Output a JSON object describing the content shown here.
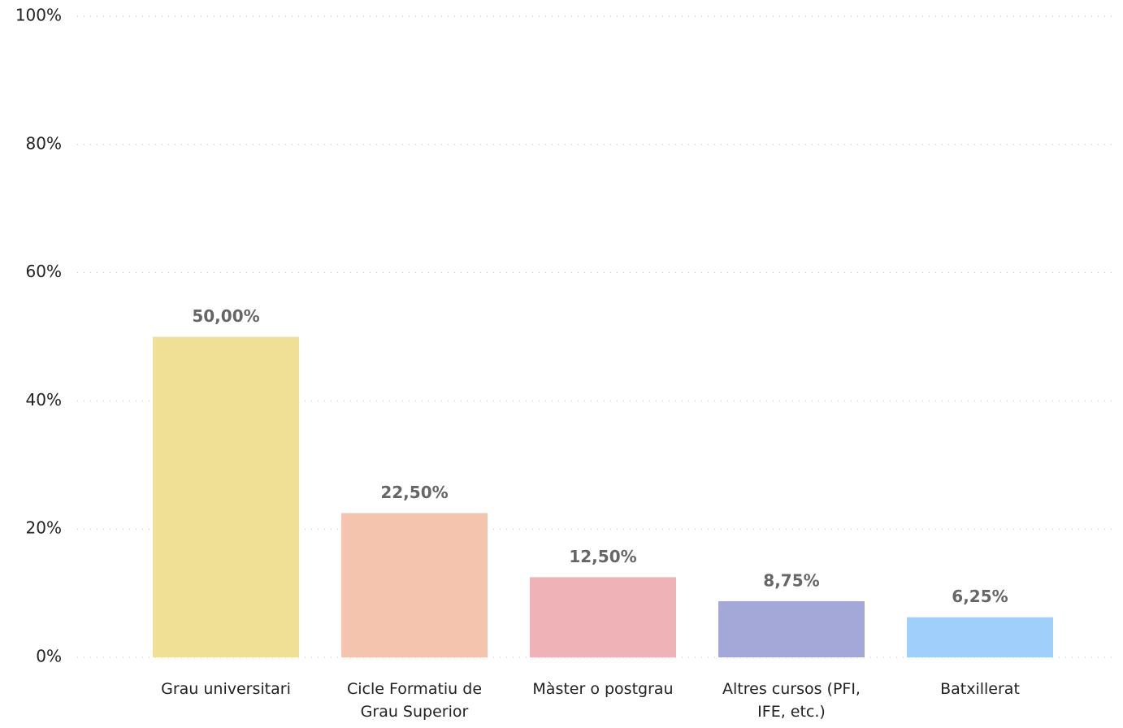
{
  "chart_data": {
    "type": "bar",
    "categories": [
      "Grau universitari",
      "Cicle Formatiu de Grau Superior",
      "Màster o postgrau",
      "Altres cursos (PFI, IFE, etc.)",
      "Batxillerat"
    ],
    "values": [
      50,
      22.5,
      12.5,
      8.75,
      6.25
    ],
    "value_labels": [
      "50,00%",
      "22,50%",
      "12,50%",
      "8,75%",
      "6,25%"
    ],
    "colors": [
      "#f0e096",
      "#f4c4ae",
      "#efb3b7",
      "#a3a8d8",
      "#a0cffc"
    ],
    "ylim": [
      0,
      100
    ],
    "yticks": [
      {
        "value": 0,
        "label": "0%"
      },
      {
        "value": 20,
        "label": "20%"
      },
      {
        "value": 40,
        "label": "40%"
      },
      {
        "value": 60,
        "label": "60%"
      },
      {
        "value": 80,
        "label": "80%"
      },
      {
        "value": 100,
        "label": "100%"
      }
    ],
    "grid": true
  }
}
